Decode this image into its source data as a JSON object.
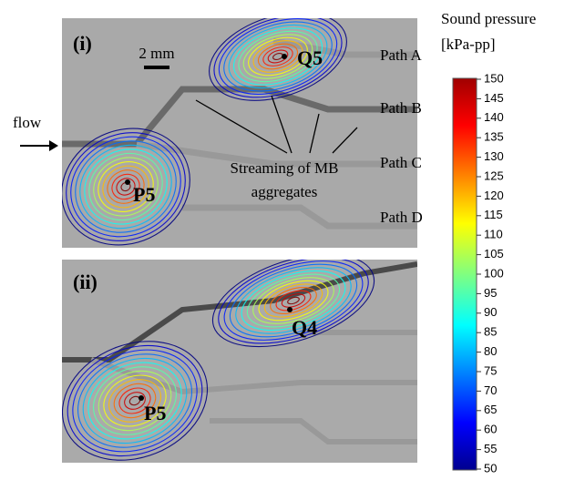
{
  "figure": {
    "panels": [
      {
        "label": "(i)",
        "scale_bar": "2 mm",
        "points": [
          "Q5",
          "P5"
        ],
        "paths": [
          "Path A",
          "Path B",
          "Path C",
          "Path D"
        ],
        "annotation": [
          "Streaming of MB",
          "aggregates"
        ],
        "flow": "flow"
      },
      {
        "label": "(ii)",
        "points": [
          "Q4",
          "P5"
        ]
      }
    ],
    "colorbar": {
      "title": [
        "Sound pressure",
        "[kPa-pp]"
      ],
      "lim": [
        50,
        150
      ],
      "ticks": [
        150,
        145,
        140,
        135,
        130,
        125,
        120,
        115,
        110,
        105,
        100,
        95,
        90,
        85,
        80,
        75,
        70,
        65,
        60,
        55,
        50
      ]
    }
  }
}
